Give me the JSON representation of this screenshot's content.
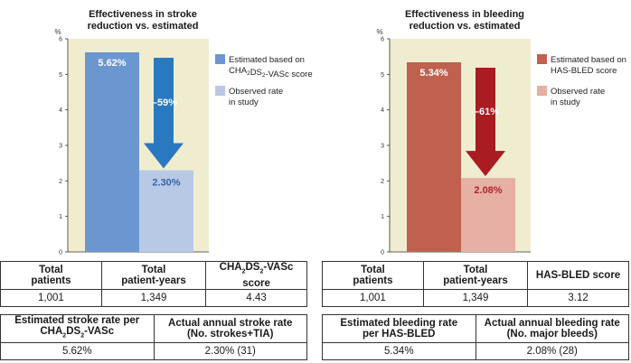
{
  "chart_data": [
    {
      "type": "bar",
      "title": "Effectiveness in stroke reduction vs. estimated",
      "title_lines": [
        "Effectiveness in stroke",
        "reduction vs. estimated"
      ],
      "ylabel": "%",
      "ylim": [
        0,
        6
      ],
      "yticks": [
        "0",
        "1",
        "2",
        "3",
        "4",
        "5",
        "6"
      ],
      "grid": false,
      "legend_placement": "right",
      "series": [
        {
          "name": "Estimated based on CHA2DS2-VASc score",
          "legend_lines": [
            "Estimated based on",
            "CHA2DS2-VASc score"
          ],
          "value": 5.62,
          "label": "5.62%",
          "color": "#6b96cf"
        },
        {
          "name": "Observed rate in study",
          "legend_lines": [
            "Observed rate",
            "in study"
          ],
          "value": 2.3,
          "label": "2.30%",
          "color": "#b8c9e6"
        }
      ],
      "annotation": {
        "text": "–59%",
        "arrow_color": "#2a78c0"
      },
      "background_color": "#f0ecd0"
    },
    {
      "type": "bar",
      "title": "Effectiveness in bleeding reduction vs. estimated",
      "title_lines": [
        "Effectiveness in bleeding",
        "reduction vs. estimated"
      ],
      "ylabel": "%",
      "ylim": [
        0,
        6
      ],
      "yticks": [
        "0",
        "1",
        "2",
        "3",
        "4",
        "5",
        "6"
      ],
      "grid": false,
      "legend_placement": "right",
      "series": [
        {
          "name": "Estimated based on HAS-BLED score",
          "legend_lines": [
            "Estimated based on",
            "HAS-BLED score"
          ],
          "value": 5.34,
          "label": "5.34%",
          "color": "#c0604f"
        },
        {
          "name": "Observed rate in study",
          "legend_lines": [
            "Observed rate",
            "in study"
          ],
          "value": 2.08,
          "label": "2.08%",
          "color": "#e6b0a4"
        }
      ],
      "annotation": {
        "text": "–61%",
        "arrow_color": "#a81c22"
      },
      "background_color": "#f0ecd0"
    }
  ],
  "tables": {
    "left_top": {
      "headers": [
        "Total patients",
        "Total patient-years",
        "CHA2DS2-VASc score"
      ],
      "row": [
        "1,001",
        "1,349",
        "4.43"
      ]
    },
    "left_bottom": {
      "headers": [
        "Estimated stroke rate per CHA2DS2-VASc",
        "Actual annual stroke rate (No. strokes+TIA)"
      ],
      "row": [
        "5.62%",
        "2.30% (31)"
      ]
    },
    "right_top": {
      "headers": [
        "Total patients",
        "Total patient-years",
        "HAS-BLED score"
      ],
      "row": [
        "1,001",
        "1,349",
        "3.12"
      ]
    },
    "right_bottom": {
      "headers": [
        "Estimated bleeding rate per HAS-BLED",
        "Actual annual bleeding rate (No. major bleeds)"
      ],
      "row": [
        "5.34%",
        "2.08% (28)"
      ]
    }
  }
}
